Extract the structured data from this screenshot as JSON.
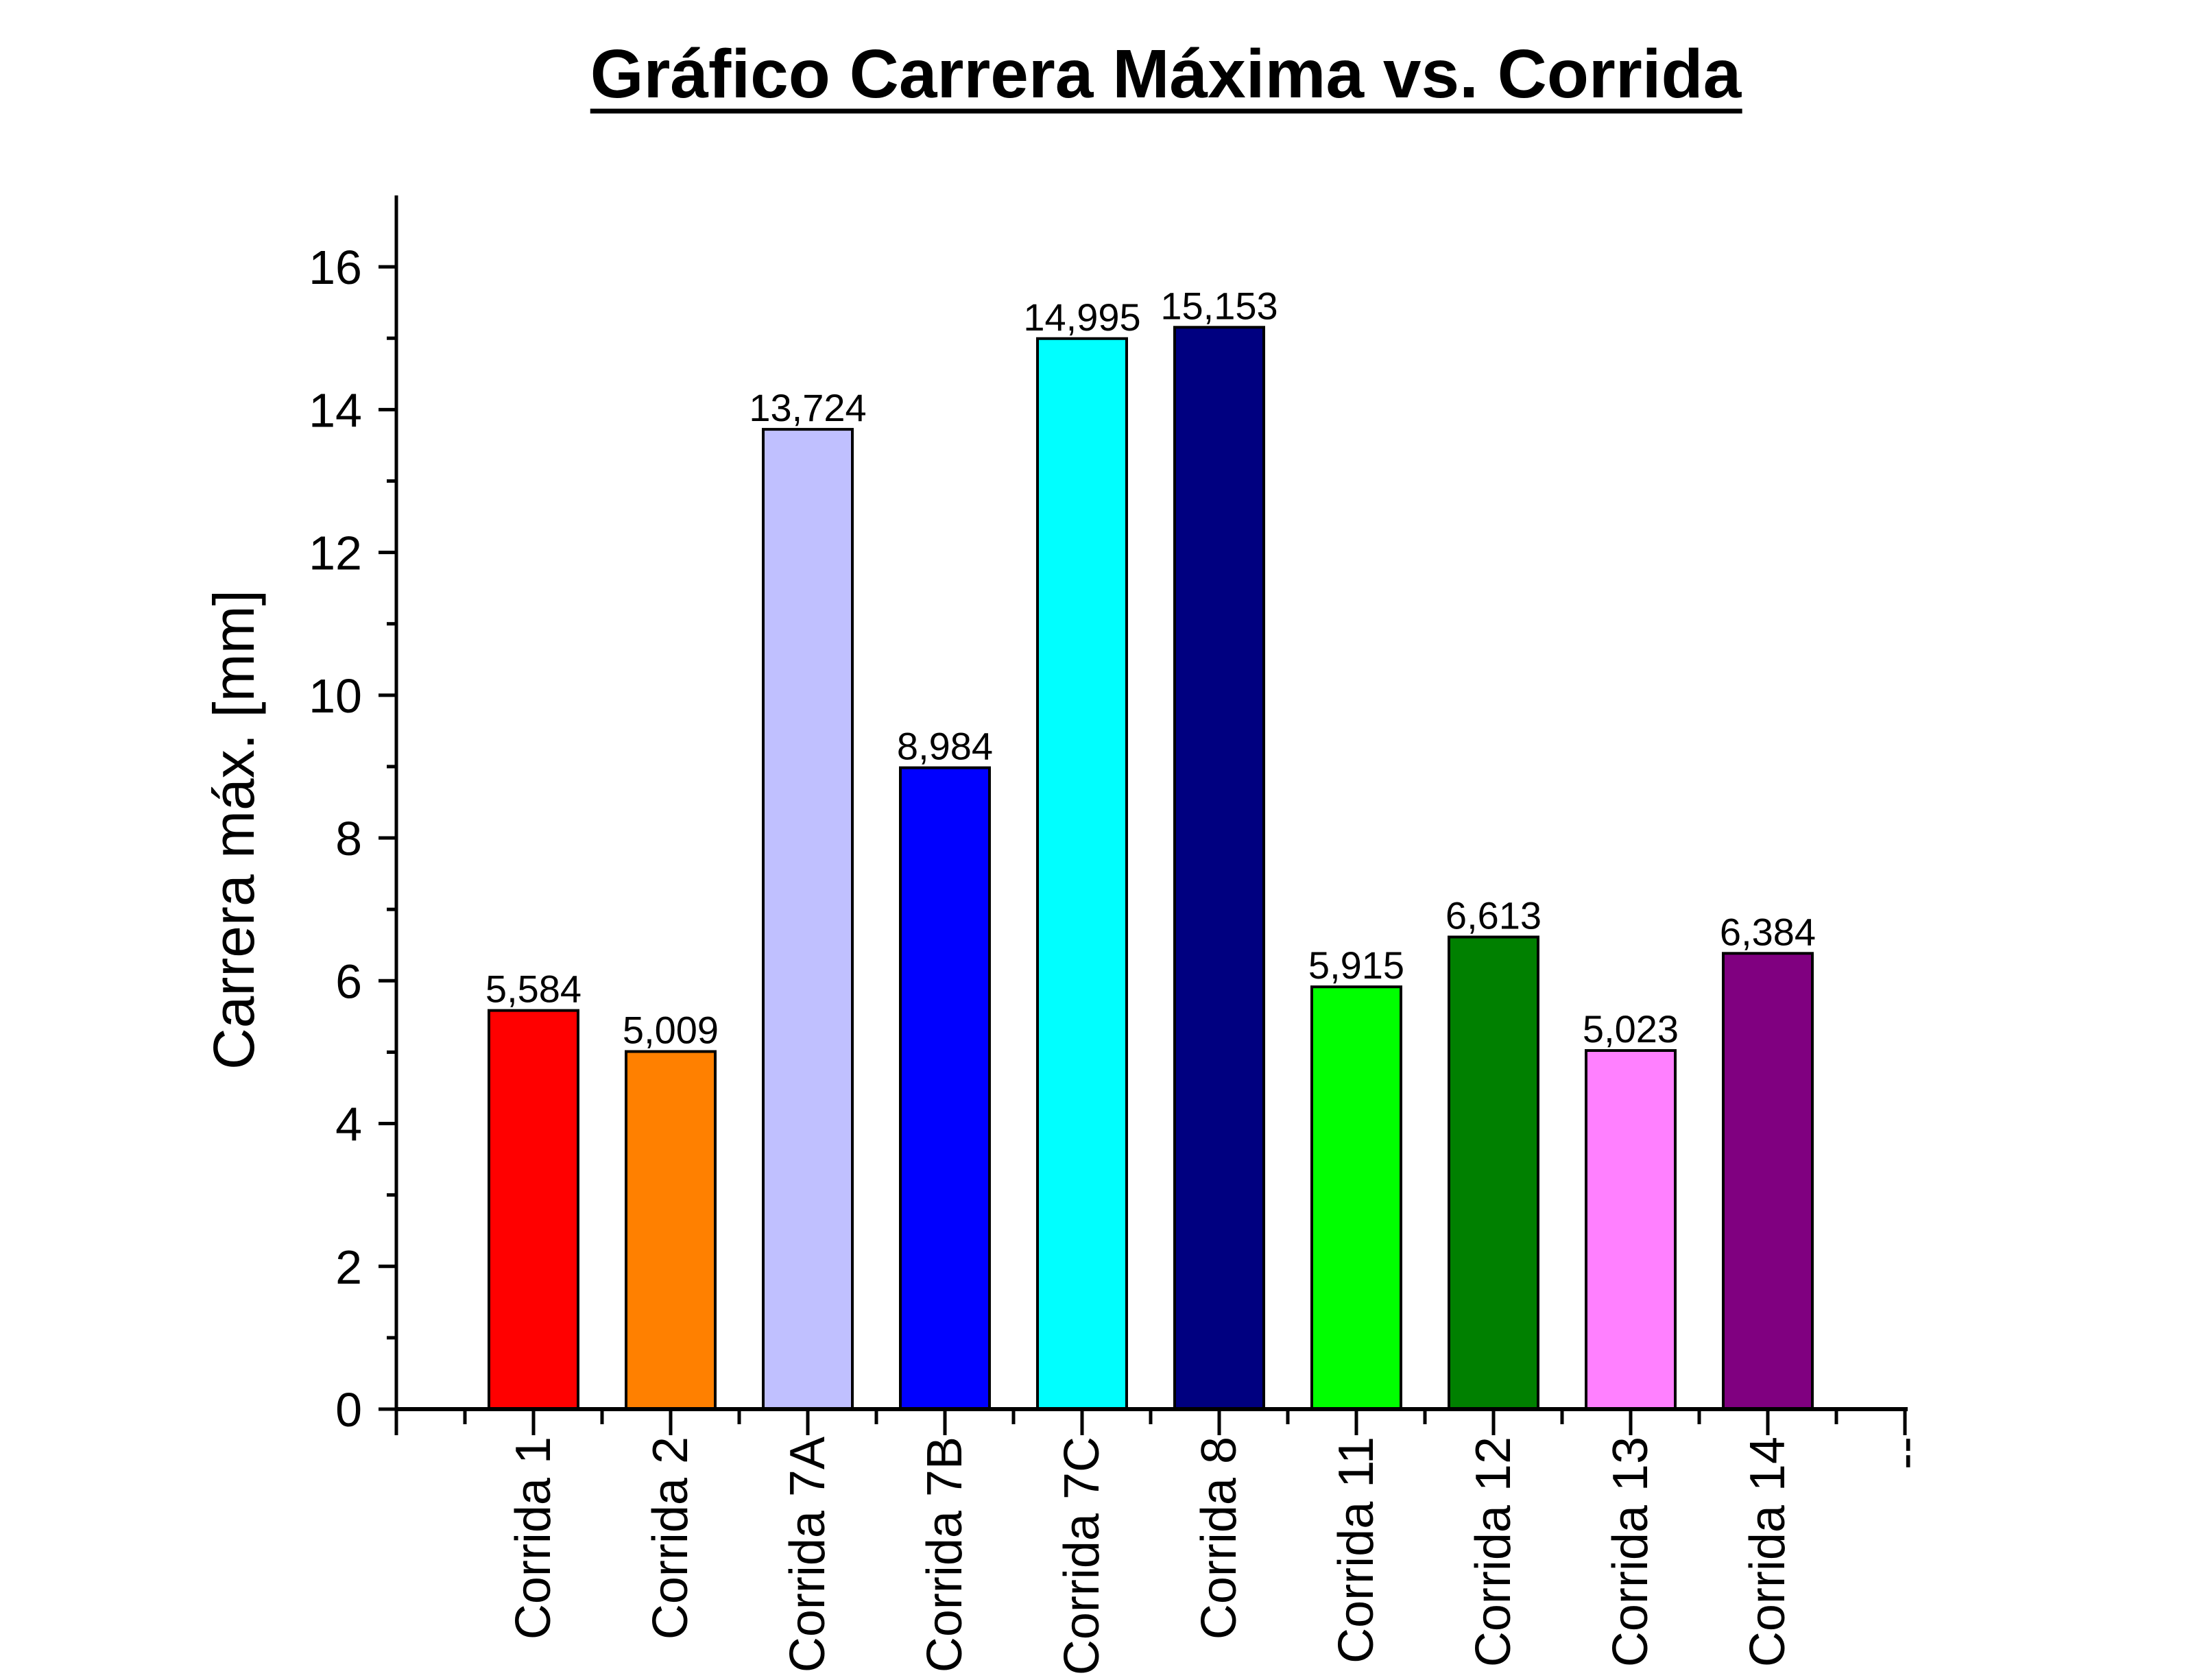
{
  "chart_data": {
    "type": "bar",
    "title": "Gráfico Carrera Máxima vs. Corrida",
    "xlabel": "",
    "ylabel": "Carrera máx. [mm]",
    "ylim": [
      0,
      17
    ],
    "y_ticks": [
      0,
      2,
      4,
      6,
      8,
      10,
      12,
      14,
      16
    ],
    "y_tick_labels": [
      "0",
      "2",
      "4",
      "6",
      "8",
      "10",
      "12",
      "14",
      "16"
    ],
    "categories": [
      "Corrida 1",
      "Corrida 2",
      "Corrida 7A",
      "Corrida 7B",
      "Corrida 7C",
      "Corrida 8",
      "Corrida 11",
      "Corrida 12",
      "Corrida 13",
      "Corrida 14",
      "--"
    ],
    "values": [
      5.584,
      5.009,
      13.724,
      8.984,
      14.995,
      15.153,
      5.915,
      6.613,
      5.023,
      6.384,
      null
    ],
    "value_labels": [
      "5,584",
      "5,009",
      "13,724",
      "8,984",
      "14,995",
      "15,153",
      "5,915",
      "6,613",
      "5,023",
      "6,384",
      ""
    ],
    "colors": [
      "#ff0000",
      "#ff8000",
      "#c0c0ff",
      "#0000ff",
      "#00ffff",
      "#000080",
      "#00ff00",
      "#008000",
      "#ff80ff",
      "#800080",
      ""
    ],
    "grid": false,
    "legend": "none"
  }
}
